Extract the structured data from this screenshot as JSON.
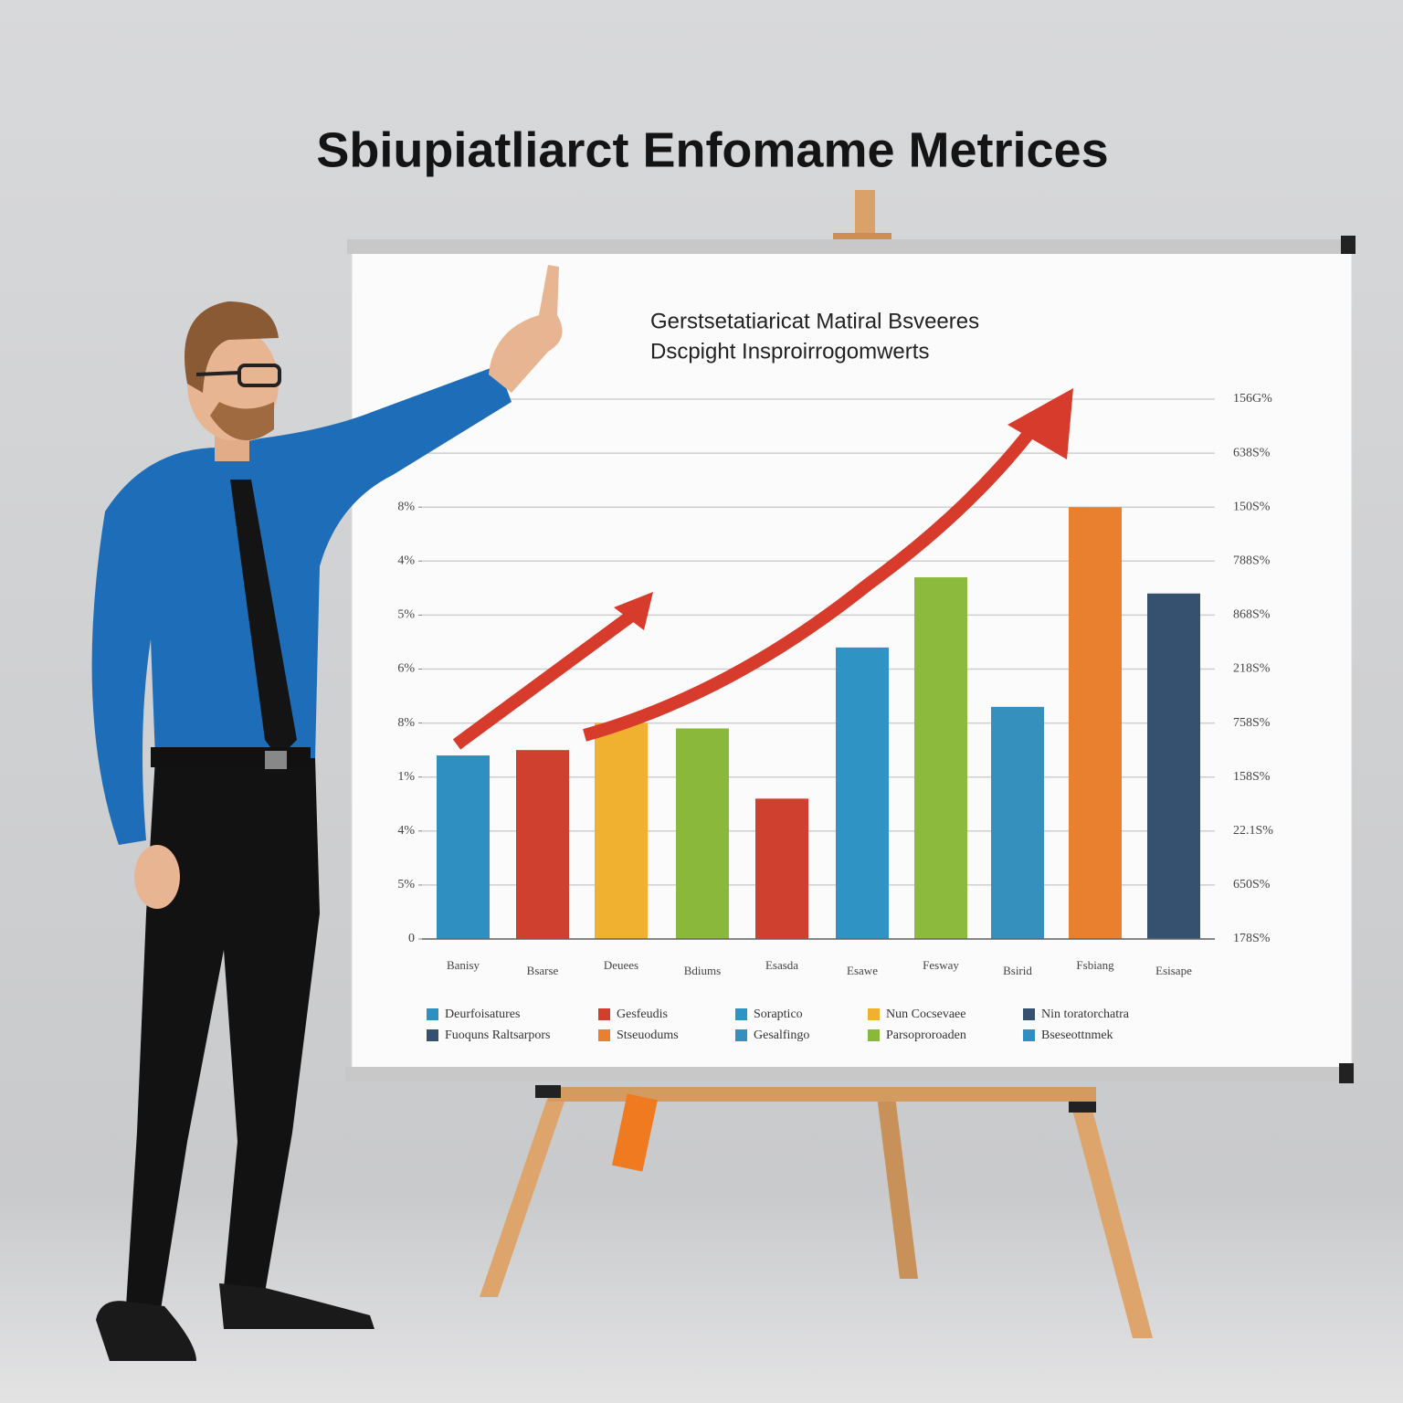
{
  "heading": "Sbiupiatliarct Enfomame Metrices",
  "chart_data": {
    "type": "bar",
    "title": "Gerstsetatiaricat Matiral Bsveeres",
    "subtitle": "Dscpight Insproirrogomwerts",
    "categories": [
      "Banisy",
      "Bsarse",
      "Deuees",
      "Bdiums",
      "Esasda",
      "Esawe",
      "Fesway",
      "Bsirid",
      "Fsbiang",
      "Esisape"
    ],
    "values": [
      3.4,
      3.5,
      4.0,
      3.9,
      2.6,
      5.4,
      6.7,
      4.3,
      8.0,
      6.4
    ],
    "colors": [
      "#2f8fc0",
      "#d0402e",
      "#f0b030",
      "#8ab83a",
      "#d0402e",
      "#2f93c3",
      "#8cba3c",
      "#3590bd",
      "#e88030",
      "#36506f"
    ],
    "ylim": [
      0,
      10
    ],
    "yticks": [
      0,
      {
        "value": 1,
        "label": "5%"
      },
      {
        "value": 2,
        "label": "4%"
      },
      {
        "value": 3,
        "label": "1%"
      },
      {
        "value": 4,
        "label": "8%"
      },
      {
        "value": 5,
        "label": "6%"
      },
      {
        "value": 6,
        "label": "5%"
      },
      {
        "value": 7,
        "label": "4%"
      },
      {
        "value": 8,
        "label": "8%"
      }
    ],
    "y2lim": [
      0,
      10
    ],
    "y2ticks": [
      {
        "value": 0,
        "label": "178S%"
      },
      {
        "value": 1,
        "label": "650S%"
      },
      {
        "value": 2,
        "label": "22.1S%"
      },
      {
        "value": 3,
        "label": "158S%"
      },
      {
        "value": 4,
        "label": "758S%"
      },
      {
        "value": 5,
        "label": "218S%"
      },
      {
        "value": 6,
        "label": "868S%"
      },
      {
        "value": 7,
        "label": "788S%"
      },
      {
        "value": 8,
        "label": "150S%"
      },
      {
        "value": 9,
        "label": "638S%"
      },
      {
        "value": 10,
        "label": "156G%"
      }
    ],
    "grid": true,
    "legend": [
      {
        "label": "Deurfoisatures",
        "color": "#2f8fc0"
      },
      {
        "label": "Fuoquns Raltsarpors",
        "color": "#36506f"
      },
      {
        "label": "Gesfeudis",
        "color": "#d0402e"
      },
      {
        "label": "Stseuodums",
        "color": "#e88030"
      },
      {
        "label": "Soraptico",
        "color": "#2f93c3"
      },
      {
        "label": "Gesalfingo",
        "color": "#3590bd"
      },
      {
        "label": "Nun Cocsevaee",
        "color": "#f0b030"
      },
      {
        "label": "Parsoproroaden",
        "color": "#8ab83a"
      },
      {
        "label": "Nin toratorchatra",
        "color": "#36506f"
      },
      {
        "label": "Bseseottnmek",
        "color": "#2f8fc0"
      }
    ]
  }
}
